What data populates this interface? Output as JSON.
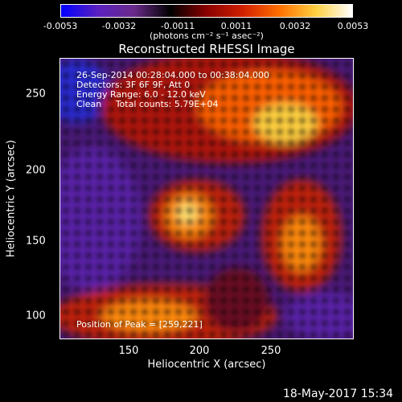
{
  "colorbar": {
    "ticks": [
      "-0.0053",
      "-0.0032",
      "-0.0011",
      "0.0011",
      "0.0032",
      "0.0053"
    ],
    "units": "(photons cm⁻² s⁻¹ asec⁻²)",
    "colors": [
      "#0000ff",
      "#5a20c0",
      "#6a2a8a",
      "#000000",
      "#8a0000",
      "#d02000",
      "#ff7000",
      "#ffd040",
      "#ffffff"
    ]
  },
  "title": "Reconstructed RHESSI Image",
  "info": {
    "time": "26-Sep-2014 00:28:04.000 to 00:38:04.000",
    "detectors": "Detectors: 3F 6F 9F, Att 0",
    "energy": "Energy Range: 6.0 - 12.0 keV",
    "clean": "Clean     Total counts: 5.79E+04"
  },
  "peak": "Position of Peak = [259,221]",
  "axes": {
    "xlabel": "Heliocentric X (arcsec)",
    "ylabel": "Heliocentric Y (arcsec)",
    "xticks": [
      "150",
      "200",
      "250"
    ],
    "yticks": [
      "250",
      "200",
      "150",
      "100"
    ]
  },
  "footer": "18-May-2017 15:34"
}
